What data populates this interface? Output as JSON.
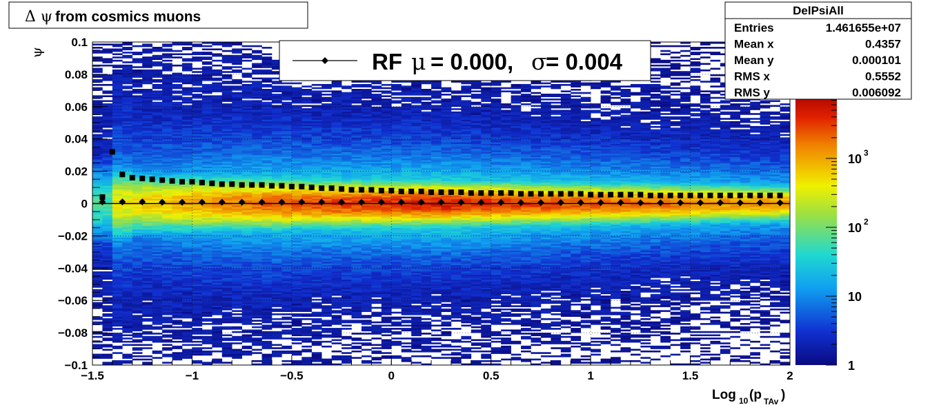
{
  "chart_data": {
    "type": "heatmap",
    "title_prefix": "Δ ψ",
    "title_text": "from cosmics muons",
    "xlabel_main": "Log",
    "xlabel_sub1": "10",
    "xlabel_mid": "(p",
    "xlabel_sub2": "TAv",
    "xlabel_end": ")",
    "ylabel": "ψ",
    "xlim": [
      -1.5,
      2
    ],
    "ylim": [
      -0.1,
      0.1
    ],
    "x_ticks": [
      "−1.5",
      "−1",
      "−0.5",
      "0",
      "0.5",
      "1",
      "1.5",
      "2"
    ],
    "y_ticks": [
      "−0.1",
      "−0.08",
      "−0.06",
      "−0.04",
      "−0.02",
      "0",
      "0.02",
      "0.04",
      "0.06",
      "0.08",
      "0.1"
    ],
    "grid": true,
    "colorbar": {
      "scale": "log",
      "range": [
        1,
        10000
      ],
      "tick_labels": [
        "1",
        "10"
      ],
      "tick_base": [
        "10",
        "10"
      ],
      "tick_exp": [
        "2",
        "3"
      ]
    },
    "legend": {
      "entry_prefix": "RF",
      "mu_symbol": "μ",
      "mu_text": "=  0.000,",
      "sigma_symbol": "σ",
      "sigma_text": "=   0.004"
    },
    "stats": {
      "name": "DelPsiAll",
      "rows": [
        {
          "label": "Entries",
          "value": "1.461655e+07"
        },
        {
          "label": "Mean x",
          "value": "0.4357"
        },
        {
          "label": "Mean y",
          "value": "0.000101"
        },
        {
          "label": "RMS x",
          "value": "0.5552"
        },
        {
          "label": "RMS y",
          "value": "0.006092"
        }
      ]
    },
    "series": [
      {
        "marker": "diamond",
        "x": [
          -1.45,
          -1.35,
          -1.25,
          -1.15,
          -1.05,
          -0.95,
          -0.85,
          -0.75,
          -0.65,
          -0.55,
          -0.45,
          -0.35,
          -0.25,
          -0.15,
          -0.05,
          0.05,
          0.15,
          0.25,
          0.35,
          0.45,
          0.55,
          0.65,
          0.75,
          0.85,
          0.95,
          1.05,
          1.15,
          1.25,
          1.35,
          1.45,
          1.55,
          1.65,
          1.75,
          1.85,
          1.95
        ],
        "y": [
          0.001,
          0.001,
          0.001,
          0.0008,
          0.0008,
          0.0008,
          0.0008,
          0.0008,
          0.0008,
          0.0008,
          0.0009,
          0.0009,
          0.0008,
          0.0008,
          0.0008,
          0.0008,
          0.0008,
          0.0008,
          0.0007,
          0.0007,
          0.0007,
          0.0006,
          0.0006,
          0.0006,
          0.0006,
          0.0006,
          0.0006,
          0.0005,
          0.0005,
          0.0005,
          0.0005,
          0.0005,
          0.0004,
          0.0004,
          0.0004
        ]
      },
      {
        "marker": "square",
        "x": [
          -1.45,
          -1.4,
          -1.35,
          -1.3,
          -1.25,
          -1.2,
          -1.15,
          -1.1,
          -1.05,
          -1.0,
          -0.95,
          -0.9,
          -0.85,
          -0.8,
          -0.75,
          -0.7,
          -0.65,
          -0.6,
          -0.55,
          -0.5,
          -0.45,
          -0.4,
          -0.35,
          -0.3,
          -0.25,
          -0.2,
          -0.15,
          -0.1,
          -0.05,
          0.0,
          0.05,
          0.1,
          0.15,
          0.2,
          0.25,
          0.3,
          0.35,
          0.4,
          0.45,
          0.5,
          0.55,
          0.6,
          0.65,
          0.7,
          0.75,
          0.8,
          0.85,
          0.9,
          0.95,
          1.0,
          1.05,
          1.1,
          1.15,
          1.2,
          1.25,
          1.3,
          1.35,
          1.4,
          1.45,
          1.5,
          1.55,
          1.6,
          1.65,
          1.7,
          1.75,
          1.8,
          1.85,
          1.9,
          1.95
        ],
        "y": [
          0.004,
          0.032,
          0.018,
          0.016,
          0.0155,
          0.015,
          0.0145,
          0.014,
          0.0135,
          0.0135,
          0.013,
          0.0125,
          0.012,
          0.012,
          0.0115,
          0.0115,
          0.0115,
          0.011,
          0.011,
          0.0105,
          0.0105,
          0.01,
          0.0095,
          0.0095,
          0.009,
          0.0085,
          0.0085,
          0.0085,
          0.008,
          0.008,
          0.0075,
          0.0075,
          0.0075,
          0.007,
          0.007,
          0.007,
          0.007,
          0.0065,
          0.0065,
          0.0065,
          0.0065,
          0.0065,
          0.006,
          0.006,
          0.006,
          0.006,
          0.006,
          0.006,
          0.006,
          0.0055,
          0.0055,
          0.0055,
          0.0055,
          0.0055,
          0.0055,
          0.005,
          0.005,
          0.005,
          0.005,
          0.005,
          0.005,
          0.005,
          0.005,
          0.005,
          0.005,
          0.005,
          0.005,
          0.005,
          0.005
        ]
      }
    ]
  }
}
